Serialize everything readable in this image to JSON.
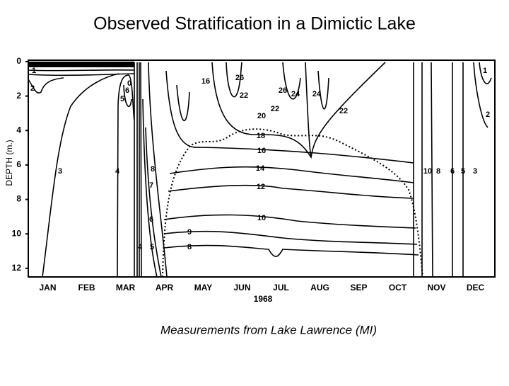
{
  "chart_data": {
    "type": "isopleth",
    "title": "Observed Stratification in a Dimictic Lake",
    "caption": "Measurements from Lake Lawrence (MI)",
    "y_label": "DEPTH (m.)",
    "x_label": "1968",
    "categories": [
      "JAN",
      "FEB",
      "MAR",
      "APR",
      "MAY",
      "JUN",
      "JUL",
      "AUG",
      "SEP",
      "OCT",
      "NOV",
      "DEC"
    ],
    "ylim": [
      0,
      12.5
    ],
    "yticks": [
      0,
      2,
      4,
      6,
      8,
      10,
      12
    ],
    "y_inverted": true,
    "isotherm_labels": [
      1,
      2,
      3,
      4,
      5,
      6,
      0,
      16,
      26,
      22,
      26,
      24,
      24,
      20,
      22,
      22,
      18,
      16,
      14,
      12,
      10,
      9,
      8,
      8,
      7,
      6,
      4,
      5,
      10,
      8,
      6,
      5,
      3,
      1,
      2
    ],
    "color": "#000000"
  }
}
